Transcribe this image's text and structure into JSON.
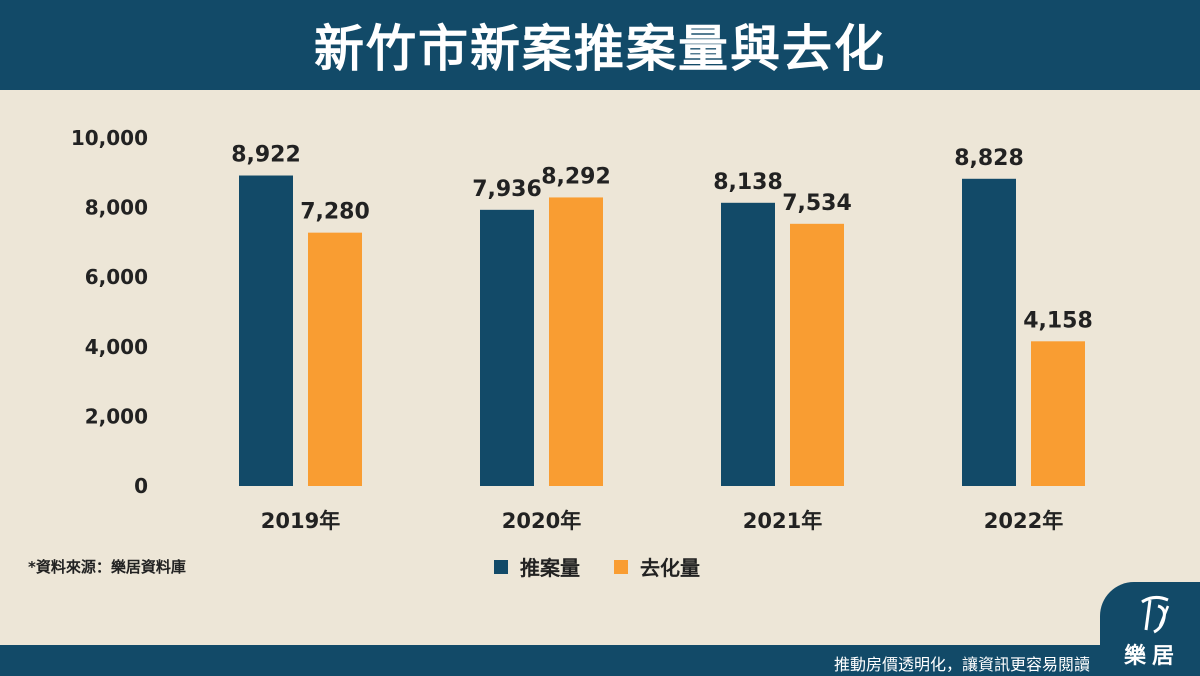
{
  "header": {
    "title": "新竹市新案推案量與去化"
  },
  "chart_data": {
    "type": "bar",
    "categories": [
      "2019年",
      "2020年",
      "2021年",
      "2022年"
    ],
    "series": [
      {
        "name": "推案量",
        "color": "#124a68",
        "values": [
          8922,
          7936,
          8138,
          8828
        ],
        "labels": [
          "8,922",
          "7,936",
          "8,138",
          "8,828"
        ]
      },
      {
        "name": "去化量",
        "color": "#f99d32",
        "values": [
          7280,
          8292,
          7534,
          4158
        ],
        "labels": [
          "7,280",
          "8,292",
          "7,534",
          "4,158"
        ]
      }
    ],
    "ylim": [
      0,
      10000
    ],
    "yticks": [
      0,
      2000,
      4000,
      6000,
      8000,
      10000
    ],
    "ytick_labels": [
      "0",
      "2,000",
      "4,000",
      "6,000",
      "8,000",
      "10,000"
    ],
    "grid": false,
    "legend_position": "bottom-center"
  },
  "source_note": "*資料來源：樂居資料庫",
  "footer": {
    "slogan": "推動房價透明化，讓資訊更容易閱讀"
  },
  "logo": {
    "text": "樂居",
    "icon": "leju-logo-icon"
  }
}
